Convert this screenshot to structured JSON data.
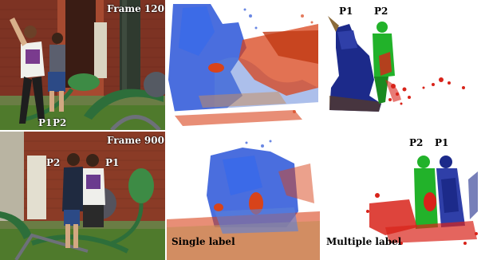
{
  "figure": {
    "rows": [
      {
        "video_frame": {
          "frame_label": "Frame 120",
          "person_labels": [
            "P1",
            "P2"
          ]
        },
        "single_label_view": {
          "caption": ""
        },
        "multiple_label_view": {
          "caption": "",
          "person_labels": [
            "P1",
            "P2"
          ]
        }
      },
      {
        "video_frame": {
          "frame_label": "Frame 900",
          "person_labels": [
            "P2",
            "P1"
          ]
        },
        "single_label_view": {
          "caption": "Single label"
        },
        "multiple_label_view": {
          "caption": "Multiple label",
          "person_labels": [
            "P2",
            "P1"
          ]
        }
      }
    ],
    "colors": {
      "point_blue": "#2a55d8",
      "point_red": "#d8431a",
      "point_green": "#22b22a",
      "point_navy": "#1c2a8a",
      "grass": "#4f7a2c",
      "brick": "#8a3b26"
    }
  }
}
